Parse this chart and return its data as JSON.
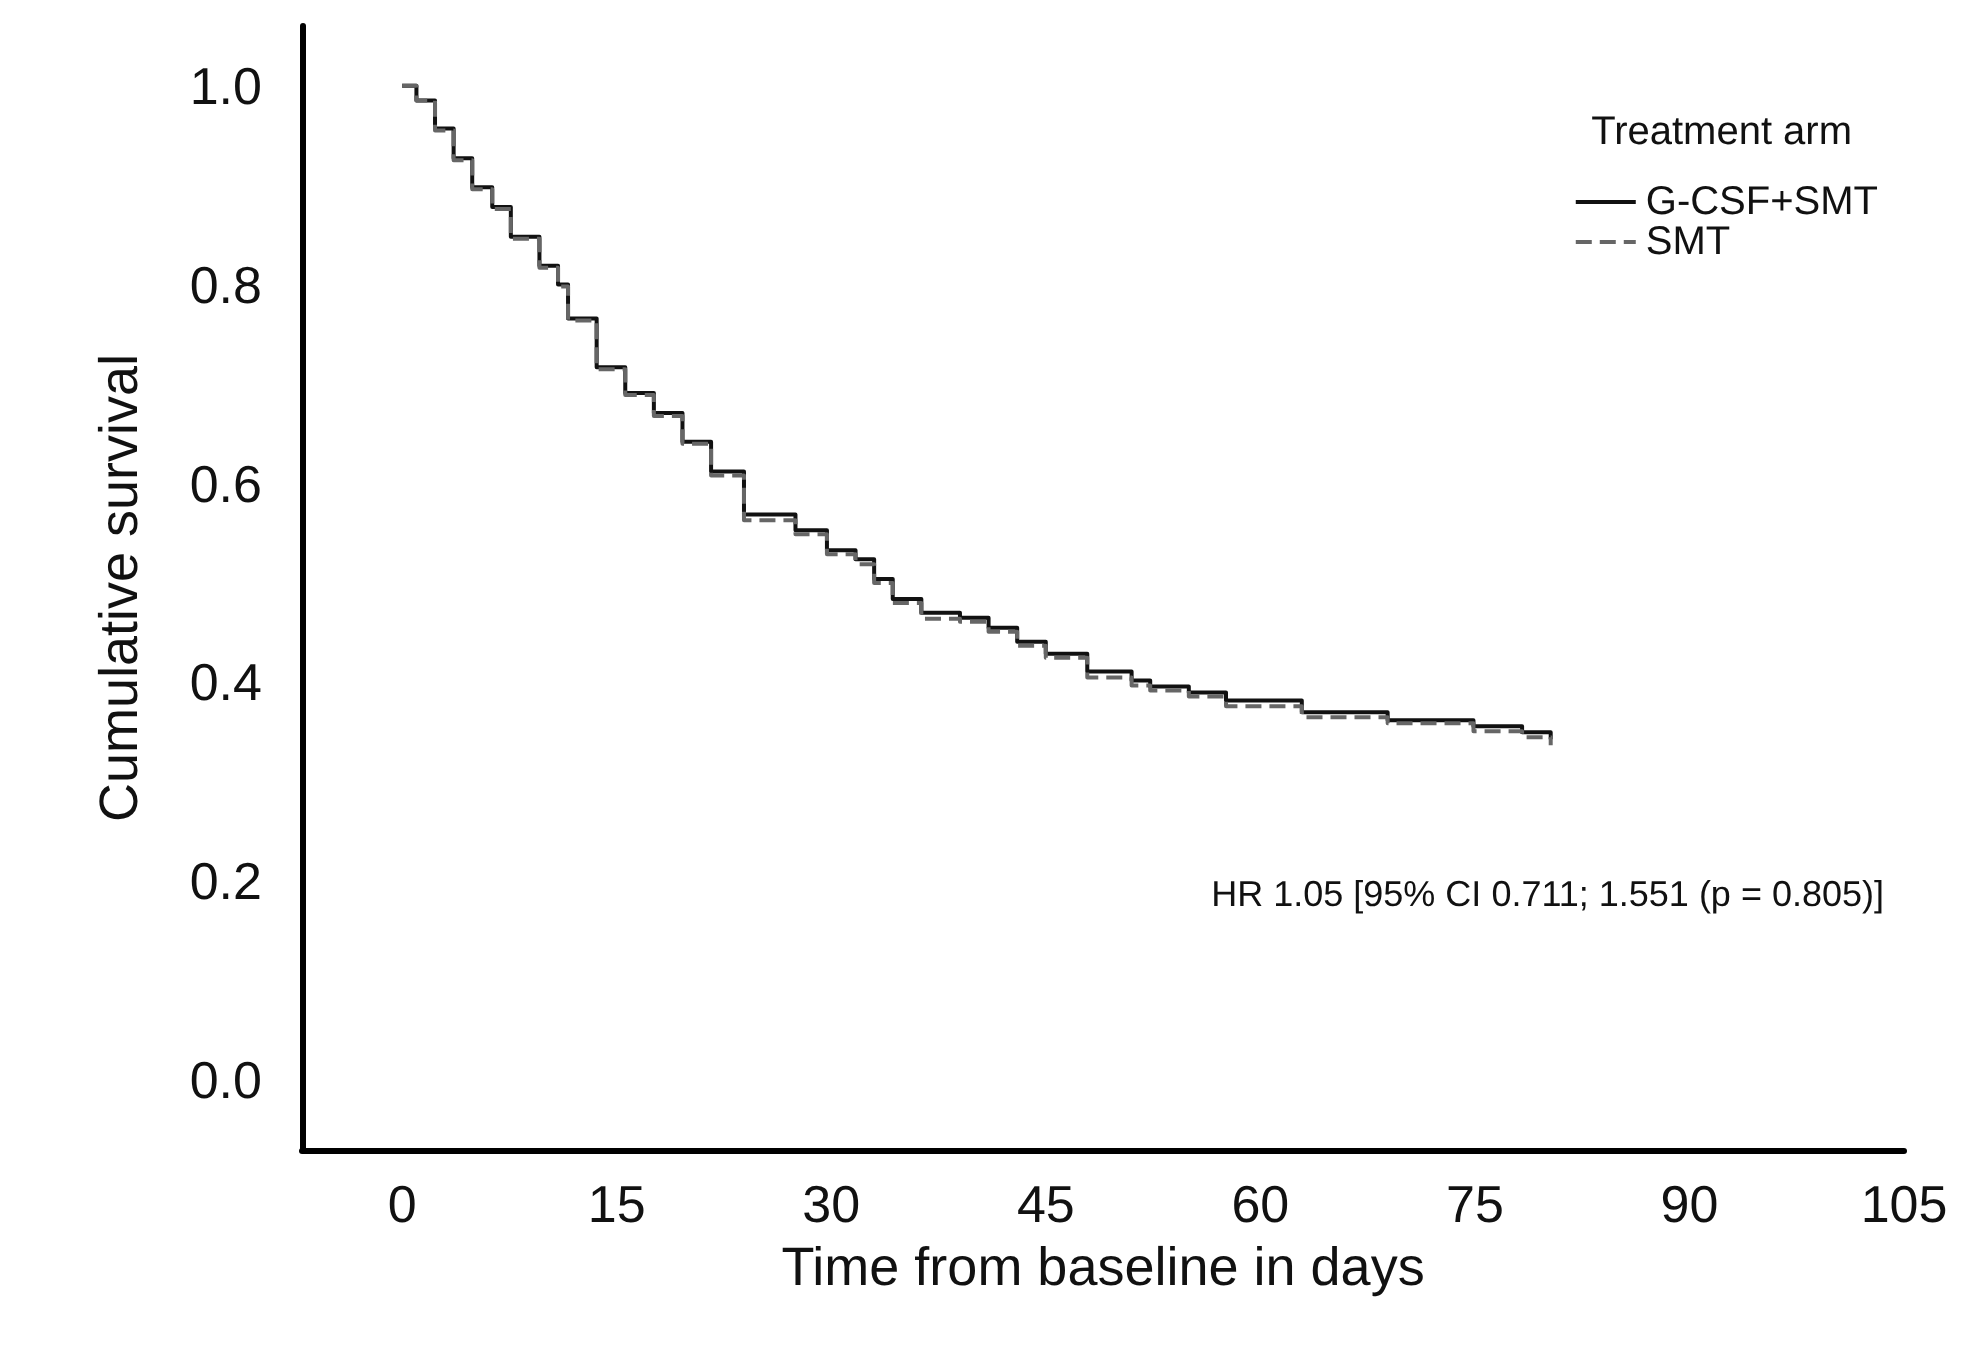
{
  "chart_data": {
    "type": "step",
    "xlabel": "Time from baseline in days",
    "ylabel": "Cumulative survival",
    "legend_title": "Treatment arm",
    "legend": "top right",
    "grid": false,
    "marker": "none",
    "xlim": [
      -7,
      105
    ],
    "xticks": [
      0,
      15,
      30,
      45,
      60,
      75,
      90,
      105
    ],
    "ylim": [
      -0.07,
      1.06
    ],
    "yticks": [
      {
        "value": 0,
        "label": "0.0"
      },
      0.2,
      0.4,
      0.6,
      0.8,
      {
        "value": 1,
        "label": "1.0"
      }
    ],
    "annotations": [
      "HR 1.05 [95% CI 0.711; 1.551 (p = 0.805)]"
    ],
    "series": [
      {
        "name": "G-CSF+SMT",
        "color": "#111111",
        "line_style": "solid",
        "x": [
          0,
          1,
          2.3,
          3.6,
          4.9,
          6.3,
          7.6,
          9.6,
          10.9,
          11.6,
          13.6,
          15.6,
          17.6,
          19.6,
          21.6,
          23.9,
          27.5,
          29.7,
          31.7,
          33,
          34.3,
          36.3,
          39,
          41,
          43,
          45,
          47.9,
          51,
          52.3,
          55,
          57.6,
          62.9,
          68.9,
          74.9,
          78.3,
          80.3
        ],
        "values": [
          1.0,
          0.985,
          0.957,
          0.927,
          0.898,
          0.878,
          0.848,
          0.819,
          0.8,
          0.766,
          0.717,
          0.691,
          0.671,
          0.642,
          0.612,
          0.569,
          0.553,
          0.533,
          0.524,
          0.504,
          0.484,
          0.47,
          0.465,
          0.455,
          0.441,
          0.429,
          0.411,
          0.402,
          0.396,
          0.39,
          0.382,
          0.37,
          0.362,
          0.356,
          0.35,
          0.343
        ]
      },
      {
        "name": "SMT",
        "color": "#666666",
        "line_style": "dashed",
        "x": [
          0,
          1,
          2.3,
          3.6,
          4.9,
          6.3,
          7.6,
          9.6,
          10.9,
          11.6,
          13.6,
          15.6,
          17.6,
          19.6,
          21.6,
          23.9,
          27.5,
          29.7,
          31.7,
          33,
          34.3,
          36.3,
          39,
          41,
          43,
          45,
          47.9,
          51,
          52.3,
          55,
          57.6,
          62.9,
          68.9,
          74.9,
          78.3,
          80.3
        ],
        "values": [
          1.0,
          0.985,
          0.955,
          0.925,
          0.896,
          0.876,
          0.846,
          0.817,
          0.798,
          0.764,
          0.715,
          0.689,
          0.668,
          0.64,
          0.608,
          0.563,
          0.549,
          0.529,
          0.519,
          0.5,
          0.48,
          0.464,
          0.461,
          0.451,
          0.437,
          0.425,
          0.405,
          0.397,
          0.392,
          0.386,
          0.376,
          0.365,
          0.359,
          0.351,
          0.345,
          0.337
        ]
      }
    ]
  }
}
